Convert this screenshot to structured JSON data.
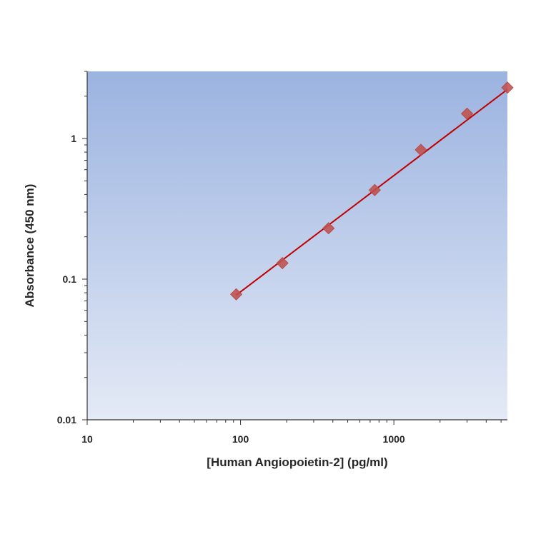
{
  "chart_data": {
    "type": "scatter",
    "title": "",
    "xlabel": "[Human Angiopoietin-2] (pg/ml)",
    "ylabel": "Absorbance (450 nm)",
    "x_scale": "log",
    "y_scale": "log",
    "xlim": [
      10,
      5500
    ],
    "ylim": [
      0.01,
      3
    ],
    "x_ticks": [
      10,
      100,
      1000
    ],
    "x_tick_labels": [
      "10",
      "100",
      "1000"
    ],
    "y_ticks": [
      0.01,
      0.1,
      1
    ],
    "y_tick_labels": [
      "0.01",
      "0.1",
      "1"
    ],
    "grid": false,
    "legend": "none",
    "series": [
      {
        "marker": "diamond",
        "color": "#c0504d",
        "x": [
          93.75,
          187.5,
          375,
          750,
          1500,
          3000,
          6000
        ],
        "y": [
          0.078,
          0.13,
          0.23,
          0.43,
          0.83,
          1.5,
          2.3
        ]
      }
    ],
    "fit_line": {
      "color": "#c00000",
      "x_range": [
        93.75,
        6000
      ],
      "y_range": [
        0.077,
        2.4
      ]
    },
    "plot_background": {
      "gradient_top": "#9bb3e0",
      "gradient_bottom": "#e4eaf6"
    }
  }
}
